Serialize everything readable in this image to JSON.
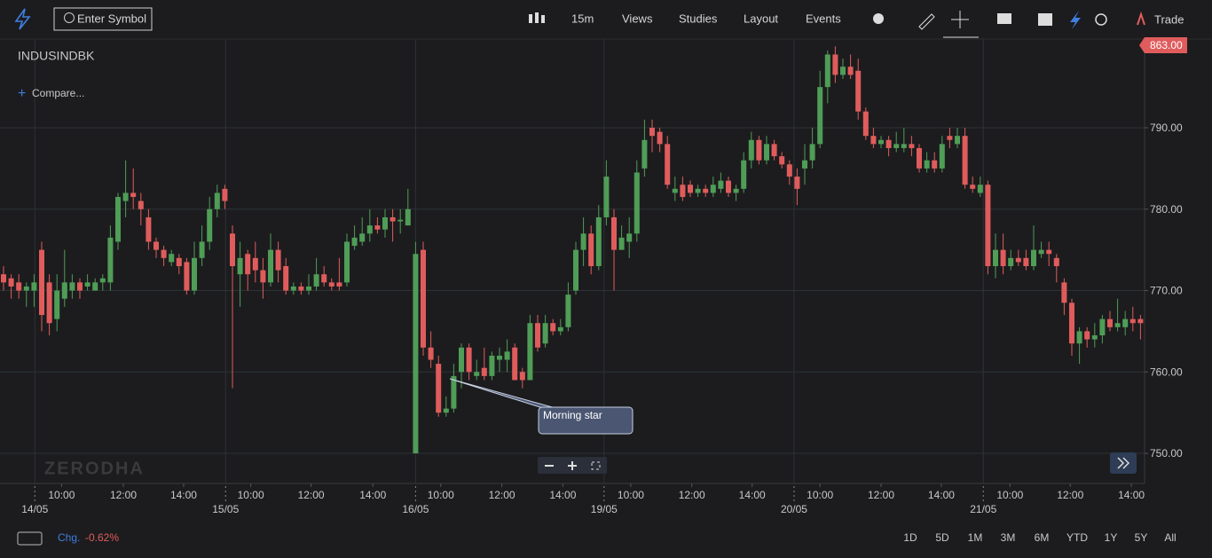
{
  "toolbar": {
    "search_placeholder": "Enter Symbol",
    "items": [
      "15m",
      "Views",
      "Studies",
      "Layout",
      "Events"
    ],
    "trade": "Trade"
  },
  "chart_data": {
    "type": "candlestick",
    "title": "INDUSINDBK",
    "compare": "Compare...",
    "watermark": "ZERODHA",
    "price_tag": "863.00",
    "annotation": "Morning star",
    "up_color": "#4f9d57",
    "down_color": "#e05c5c",
    "grid": true,
    "ylim": [
      746.3,
      800.9
    ],
    "yticks": [
      {
        "value": 750,
        "label": "750.00"
      },
      {
        "value": 760,
        "label": "760.00"
      },
      {
        "value": 770,
        "label": "770.00"
      },
      {
        "value": 780,
        "label": "780.00"
      },
      {
        "value": 790,
        "label": "790.00"
      }
    ],
    "xlim": [
      -0.5,
      149.5
    ],
    "xticks": [
      {
        "value": 7.6,
        "label": "10:00"
      },
      {
        "value": 15.7,
        "label": "12:00"
      },
      {
        "value": 23.6,
        "label": "14:00"
      },
      {
        "value": 32.4,
        "label": "10:00"
      },
      {
        "value": 40.3,
        "label": "12:00"
      },
      {
        "value": 48.4,
        "label": "14:00"
      },
      {
        "value": 57.3,
        "label": "10:00"
      },
      {
        "value": 65.3,
        "label": "12:00"
      },
      {
        "value": 73.3,
        "label": "14:00"
      },
      {
        "value": 82.2,
        "label": "10:00"
      },
      {
        "value": 90.2,
        "label": "12:00"
      },
      {
        "value": 98.1,
        "label": "14:00"
      },
      {
        "value": 107,
        "label": "10:00"
      },
      {
        "value": 115,
        "label": "12:00"
      },
      {
        "value": 122.9,
        "label": "14:00"
      },
      {
        "value": 131.9,
        "label": "10:00"
      },
      {
        "value": 139.8,
        "label": "12:00"
      },
      {
        "value": 147.8,
        "label": "14:00"
      }
    ],
    "dayticks": [
      {
        "value": 4.1,
        "label": "14/05"
      },
      {
        "value": 29.1,
        "label": "15/05"
      },
      {
        "value": 54,
        "label": "16/05"
      },
      {
        "value": 78.7,
        "label": "19/05"
      },
      {
        "value": 103.6,
        "label": "20/05"
      },
      {
        "value": 128.4,
        "label": "21/05"
      }
    ],
    "open": [
      772,
      771.5,
      771,
      770,
      770,
      775,
      771,
      766.5,
      769,
      770,
      771,
      770.5,
      770,
      771,
      771,
      776,
      781,
      782,
      781,
      779,
      776,
      775,
      773.5,
      774,
      773.5,
      770,
      774,
      776,
      780,
      782.5,
      777,
      772,
      774.5,
      774,
      772.5,
      771,
      775,
      773,
      770,
      770.5,
      770,
      770.5,
      772,
      771,
      771,
      771,
      775.5,
      776,
      777,
      778,
      777.5,
      779,
      778.5,
      778,
      750,
      775,
      763,
      761,
      755,
      755.5,
      760,
      763,
      759.5,
      760.5,
      759.5,
      761.5,
      761.5,
      763,
      760,
      759,
      766,
      763.5,
      766,
      765,
      765.5,
      770,
      775,
      777,
      773,
      779,
      779,
      775,
      776,
      777,
      785,
      790,
      789.5,
      788,
      782,
      783,
      783,
      782,
      782.5,
      782,
      782.5,
      783.5,
      782,
      782.5,
      786,
      788.5,
      786,
      788,
      786.5,
      785.5,
      784,
      785,
      786,
      788,
      795,
      799,
      796.5,
      797.5,
      797,
      792,
      789,
      788,
      788.5,
      787.5,
      787.5,
      788,
      787.5,
      785,
      786,
      785,
      789,
      788,
      789,
      783,
      782,
      783,
      773,
      775,
      773,
      774,
      774,
      773,
      774.5,
      775,
      774,
      771,
      768.5,
      763.5,
      765,
      764,
      764.5,
      766.5,
      765.5,
      765.5,
      766.5,
      766.5
    ],
    "high": [
      773,
      772,
      772,
      771,
      772,
      776,
      772,
      772,
      775,
      772,
      771.5,
      772,
      771.5,
      772,
      778,
      782,
      786,
      785,
      782,
      780,
      776.5,
      775.5,
      775,
      774.5,
      774,
      776,
      778,
      781.5,
      783,
      783,
      778,
      776,
      775,
      776,
      774,
      777,
      776,
      774,
      771,
      771,
      772,
      774,
      773,
      771.5,
      774,
      777,
      778,
      779,
      780,
      779,
      780,
      780,
      780,
      782.5,
      776,
      776,
      765,
      762,
      757,
      761,
      763.5,
      763.5,
      761.5,
      763,
      762.5,
      763,
      764,
      763.5,
      760.5,
      767,
      767,
      767,
      766.5,
      766.5,
      771,
      776,
      779,
      778,
      780.5,
      786,
      780,
      778,
      779,
      786,
      791,
      791,
      790,
      789,
      784,
      784,
      783.5,
      783,
      783,
      784,
      784.5,
      784,
      783,
      787,
      789.5,
      789,
      789,
      788.5,
      787,
      786,
      785,
      788,
      790,
      797,
      799.5,
      800,
      798.5,
      799,
      798.5,
      792.5,
      790,
      789,
      789,
      789.5,
      790,
      789,
      788,
      787,
      787,
      789,
      790,
      790,
      790,
      784,
      784,
      783.5,
      777,
      777,
      775,
      775,
      775,
      778,
      776,
      776,
      774.5,
      771.5,
      769,
      765.5,
      765.5,
      766,
      767,
      767.5,
      769,
      767.5,
      768,
      767
    ],
    "low": [
      770,
      769,
      769,
      768,
      768,
      765,
      764.5,
      765,
      768,
      769,
      769,
      770,
      770,
      770,
      770,
      775,
      779,
      780,
      778,
      775,
      774,
      773,
      773,
      772,
      769.5,
      769.5,
      773,
      775,
      779,
      780,
      758,
      768,
      770,
      771,
      769,
      770.5,
      771,
      769.5,
      769.5,
      769.5,
      769.5,
      770,
      770.5,
      770,
      770,
      770.5,
      775,
      775.5,
      776,
      777,
      776.5,
      776,
      777,
      778,
      750,
      762,
      760.5,
      754.5,
      754.5,
      755,
      758,
      759,
      759,
      759,
      759,
      760,
      760,
      759,
      758,
      759,
      762.5,
      763,
      764.5,
      764.5,
      765,
      769.5,
      773,
      772,
      772.5,
      778,
      770,
      775,
      774,
      776,
      784,
      787,
      787,
      782.5,
      781,
      781,
      781.5,
      781.5,
      781.5,
      781.5,
      782,
      781.5,
      781,
      782,
      785,
      785.5,
      785.5,
      786,
      785,
      783,
      780.5,
      783,
      785,
      787.5,
      793,
      795.5,
      796,
      796,
      791,
      788.5,
      787.5,
      787.5,
      786.5,
      787,
      787,
      786.5,
      784.5,
      784.5,
      784.5,
      784.5,
      787.5,
      787.5,
      782.5,
      782,
      781.5,
      772,
      771.5,
      772,
      772.5,
      773,
      772.5,
      772.5,
      774,
      773,
      771,
      767,
      762,
      761,
      763,
      763,
      763.5,
      765,
      765,
      764.5,
      765,
      764
    ],
    "close": [
      771,
      770.5,
      770,
      770.5,
      771,
      767,
      766,
      770,
      771,
      771,
      770,
      771,
      771,
      771.5,
      776.5,
      781.5,
      782,
      781.5,
      780,
      776,
      775,
      774,
      774.5,
      773,
      770,
      774,
      776,
      780,
      782,
      781,
      773,
      774,
      772,
      772.5,
      771,
      775,
      772.5,
      770,
      770.5,
      770,
      770.5,
      772,
      771,
      770.5,
      770.5,
      776,
      776.5,
      777,
      778,
      777.5,
      779,
      778.5,
      778.7,
      780,
      774.5,
      763,
      761.5,
      755,
      755.5,
      759.5,
      763,
      760,
      760,
      759.5,
      762,
      762,
      762.5,
      759,
      759,
      766,
      763,
      766,
      765,
      765.5,
      769.5,
      775,
      777,
      773,
      779,
      784,
      775,
      776.5,
      777,
      784.5,
      788.5,
      789,
      788,
      783,
      782.5,
      781.5,
      782,
      782.5,
      782,
      783,
      783.5,
      782,
      782.5,
      786,
      788.5,
      786,
      788,
      786.5,
      785.5,
      784,
      782.5,
      786,
      788,
      795,
      799,
      796.5,
      797.5,
      796.5,
      792,
      789,
      788,
      788.5,
      787.5,
      788,
      788,
      787.5,
      785,
      786,
      785,
      788,
      788.5,
      789,
      783,
      782.5,
      783,
      773,
      775,
      773,
      774,
      773.5,
      773,
      775,
      775,
      774.5,
      773,
      768.5,
      763.5,
      765,
      764,
      764.5,
      766.5,
      765.5,
      766,
      766.5,
      766,
      766
    ]
  },
  "footer": {
    "change_label": "Chg.",
    "change_value": "-0.62%",
    "ranges": [
      "1D",
      "5D",
      "1M",
      "3M",
      "6M",
      "YTD",
      "1Y",
      "5Y",
      "All"
    ]
  }
}
